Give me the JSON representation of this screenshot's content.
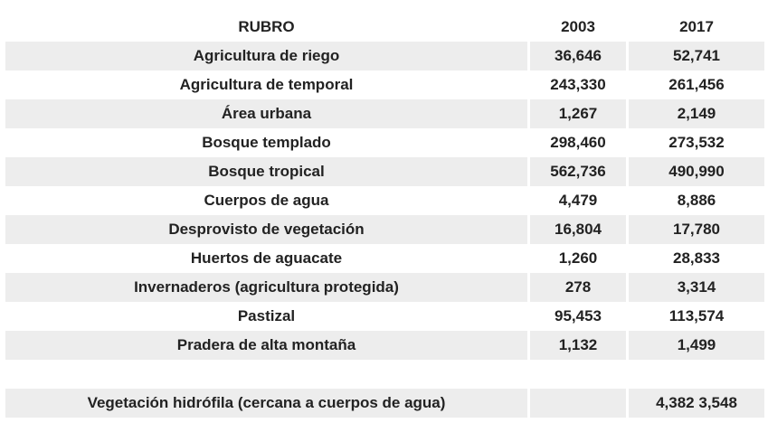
{
  "table": {
    "headers": [
      "RUBRO",
      "2003",
      "2017"
    ],
    "rows": [
      [
        "Agricultura de riego",
        "36,646",
        "52,741"
      ],
      [
        "Agricultura de temporal",
        "243,330",
        "261,456"
      ],
      [
        "Área urbana",
        "1,267",
        "2,149"
      ],
      [
        "Bosque templado",
        "298,460",
        "273,532"
      ],
      [
        "Bosque tropical",
        "562,736",
        "490,990"
      ],
      [
        "Cuerpos de agua",
        "4,479",
        "8,886"
      ],
      [
        "Desprovisto de vegetación",
        "16,804",
        "17,780"
      ],
      [
        "Huertos de aguacate",
        "1,260",
        "28,833"
      ],
      [
        "Invernaderos (agricultura protegida)",
        "278",
        "3,314"
      ],
      [
        "Pastizal",
        "95,453",
        "113,574"
      ],
      [
        "Pradera de alta montaña",
        "1,132",
        "1,499"
      ]
    ],
    "last_row": [
      "Vegetación hidrófila (cercana a cuerpos de agua)",
      "",
      "4,382 3,548"
    ]
  }
}
